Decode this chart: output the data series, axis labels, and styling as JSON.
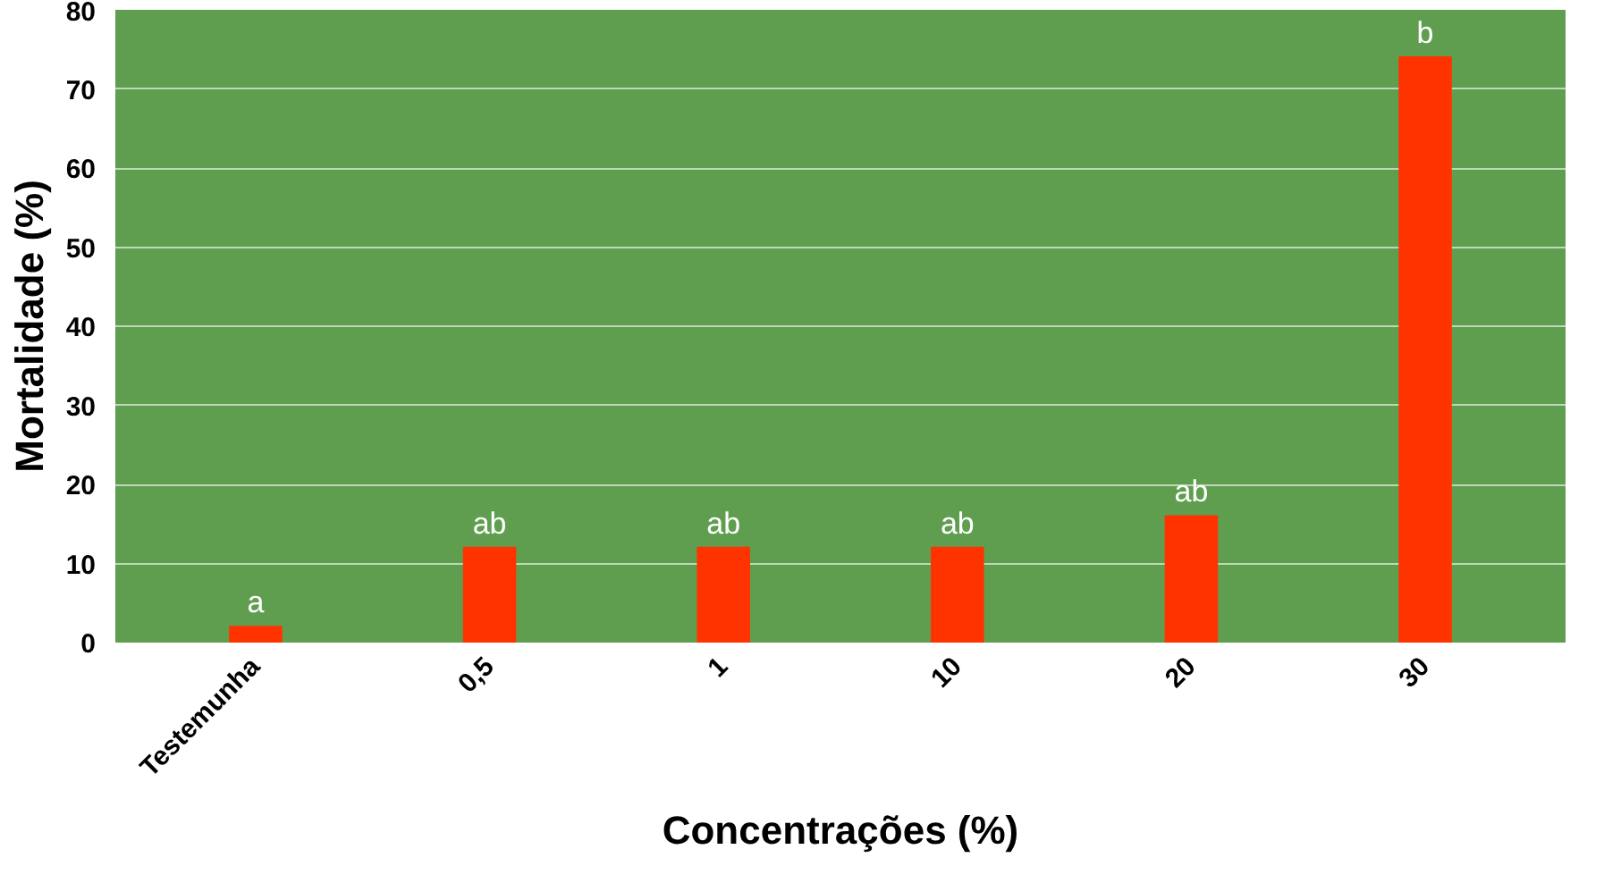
{
  "chart_data": {
    "type": "bar",
    "xlabel": "Concentrações (%)",
    "ylabel": "Mortalidade (%)",
    "categories": [
      "Testemunha",
      "0,5",
      "1",
      "10",
      "20",
      "30"
    ],
    "values": [
      2,
      12,
      12,
      12,
      16,
      74
    ],
    "color": "#ff3300",
    "ylim": [
      0,
      80
    ],
    "yticks": [
      0,
      10,
      20,
      30,
      40,
      50,
      60,
      70,
      80
    ],
    "grid": "y",
    "annotations": [
      {
        "text": "a",
        "x": "Testemunha",
        "y": 2
      },
      {
        "text": "ab",
        "x": "0,5",
        "y": 12
      },
      {
        "text": "ab",
        "x": "1",
        "y": 12
      },
      {
        "text": "ab",
        "x": "10",
        "y": 12
      },
      {
        "text": "ab",
        "x": "20",
        "y": 16
      },
      {
        "text": "b",
        "x": "30",
        "y": 74
      }
    ]
  }
}
